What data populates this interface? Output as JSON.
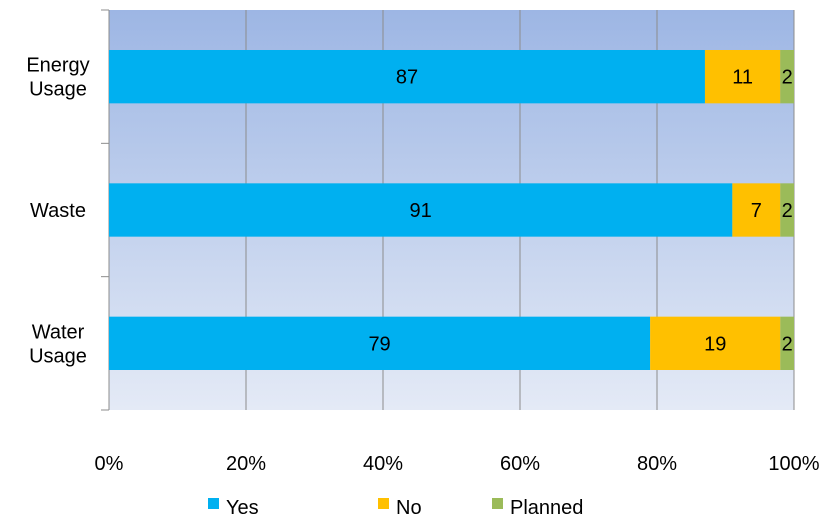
{
  "chart_data": {
    "type": "bar",
    "orientation": "horizontal",
    "stacked": true,
    "categories": [
      "Energy Usage",
      "Waste",
      "Water Usage"
    ],
    "series": [
      {
        "name": "Yes",
        "values": [
          87,
          91,
          79
        ],
        "color": "#00B0F0"
      },
      {
        "name": "No",
        "values": [
          11,
          7,
          19
        ],
        "color": "#FFC000"
      },
      {
        "name": "Planned",
        "values": [
          2,
          2,
          2
        ],
        "color": "#9BBB59"
      }
    ],
    "xlim": [
      0,
      100
    ],
    "xticks": [
      "0%",
      "20%",
      "40%",
      "60%",
      "80%",
      "100%"
    ],
    "grid": true,
    "legend_position": "bottom",
    "plot_background": {
      "top": "#9DB6E4",
      "bottom": "#E4EAF6"
    },
    "gridline_color": "#8C8C8C"
  }
}
